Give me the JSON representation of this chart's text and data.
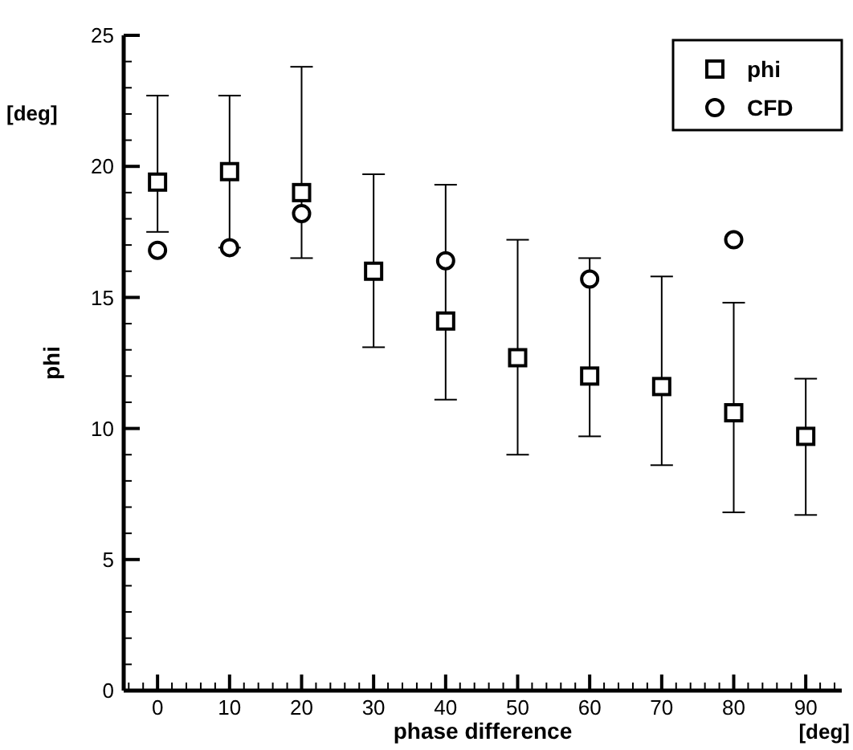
{
  "chart_data": {
    "type": "scatter",
    "xlabel": "phase difference",
    "ylabel": "phi",
    "annotations": [
      "[deg]",
      "[deg]"
    ],
    "x": [
      0,
      10,
      20,
      30,
      40,
      50,
      60,
      70,
      80,
      90
    ],
    "xlim": [
      -4.7,
      95
    ],
    "ylim": [
      0,
      25
    ],
    "xticks": [
      0,
      10,
      20,
      30,
      40,
      50,
      60,
      70,
      80,
      90,
      {
        "value": -4,
        "label": null
      },
      {
        "value": -2,
        "label": null
      },
      {
        "value": 2,
        "label": null
      },
      {
        "value": 4,
        "label": null
      },
      {
        "value": 6,
        "label": null
      },
      {
        "value": 8,
        "label": null
      },
      {
        "value": 12,
        "label": null
      },
      {
        "value": 14,
        "label": null
      },
      {
        "value": 16,
        "label": null
      },
      {
        "value": 18,
        "label": null
      },
      {
        "value": 22,
        "label": null
      },
      {
        "value": 24,
        "label": null
      },
      {
        "value": 26,
        "label": null
      },
      {
        "value": 28,
        "label": null
      },
      {
        "value": 32,
        "label": null
      },
      {
        "value": 34,
        "label": null
      },
      {
        "value": 36,
        "label": null
      },
      {
        "value": 38,
        "label": null
      },
      {
        "value": 42,
        "label": null
      },
      {
        "value": 44,
        "label": null
      },
      {
        "value": 46,
        "label": null
      },
      {
        "value": 48,
        "label": null
      },
      {
        "value": 52,
        "label": null
      },
      {
        "value": 54,
        "label": null
      },
      {
        "value": 56,
        "label": null
      },
      {
        "value": 58,
        "label": null
      },
      {
        "value": 62,
        "label": null
      },
      {
        "value": 64,
        "label": null
      },
      {
        "value": 66,
        "label": null
      },
      {
        "value": 68,
        "label": null
      },
      {
        "value": 72,
        "label": null
      },
      {
        "value": 74,
        "label": null
      },
      {
        "value": 76,
        "label": null
      },
      {
        "value": 78,
        "label": null
      },
      {
        "value": 82,
        "label": null
      },
      {
        "value": 84,
        "label": null
      },
      {
        "value": 86,
        "label": null
      },
      {
        "value": 88,
        "label": null
      },
      {
        "value": 92,
        "label": null
      },
      {
        "value": 94,
        "label": null
      }
    ],
    "yticks": [
      0,
      5,
      10,
      15,
      20,
      25,
      {
        "value": 1,
        "label": null
      },
      {
        "value": 2,
        "label": null
      },
      {
        "value": 3,
        "label": null
      },
      {
        "value": 4,
        "label": null
      },
      {
        "value": 6,
        "label": null
      },
      {
        "value": 7,
        "label": null
      },
      {
        "value": 8,
        "label": null
      },
      {
        "value": 9,
        "label": null
      },
      {
        "value": 11,
        "label": null
      },
      {
        "value": 12,
        "label": null
      },
      {
        "value": 13,
        "label": null
      },
      {
        "value": 14,
        "label": null
      },
      {
        "value": 16,
        "label": null
      },
      {
        "value": 17,
        "label": null
      },
      {
        "value": 18,
        "label": null
      },
      {
        "value": 19,
        "label": null
      },
      {
        "value": 21,
        "label": null
      },
      {
        "value": 22,
        "label": null
      },
      {
        "value": 23,
        "label": null
      },
      {
        "value": 24,
        "label": null
      }
    ],
    "legend": "top right",
    "grid": false,
    "series": [
      {
        "name": "phi",
        "color": "#000000",
        "marker": "square",
        "values": [
          19.4,
          19.8,
          19.0,
          16.0,
          14.1,
          12.7,
          12.0,
          11.6,
          10.6,
          9.7
        ],
        "errors": [
          [
            17.5,
            22.7
          ],
          [
            16.9,
            22.7
          ],
          [
            16.5,
            23.8
          ],
          [
            13.1,
            19.7
          ],
          [
            11.1,
            19.3
          ],
          [
            9.0,
            17.2
          ],
          [
            9.7,
            16.5
          ],
          [
            8.6,
            15.8
          ],
          [
            6.8,
            14.8
          ],
          [
            6.7,
            11.9
          ]
        ]
      },
      {
        "name": "CFD",
        "color": "#000000",
        "marker": "circle",
        "values": [
          16.8,
          16.9,
          18.2,
          null,
          16.4,
          null,
          15.7,
          null,
          17.2,
          null
        ]
      }
    ]
  }
}
